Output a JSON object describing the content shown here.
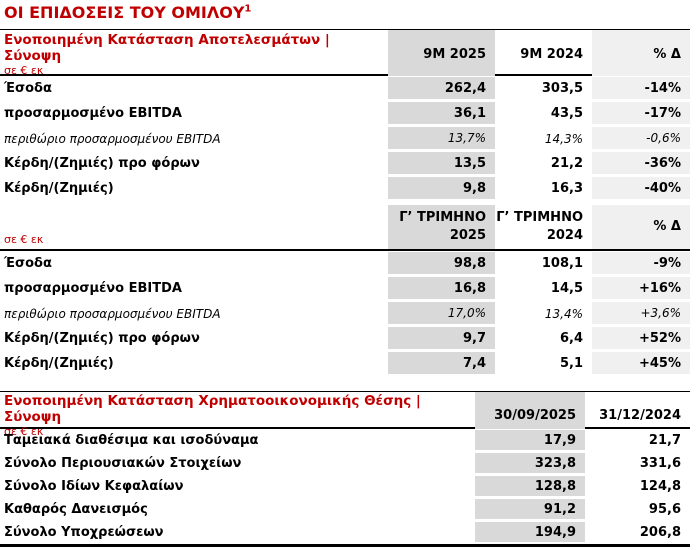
{
  "page": {
    "title": "ΟΙ ΕΠΙΔΟΣΕΙΣ ΤΟΥ ΟΜΙΛΟΥ",
    "title_superscript": "1"
  },
  "colors": {
    "accent_red": "#C00000",
    "column_grey": "#D9D9D9",
    "column_light_grey": "#F0F0F0"
  },
  "income_statement": {
    "title": "Ενοποιημένη Κατάσταση Αποτελεσμάτων | Σύνοψη",
    "unit": "σε € εκ",
    "columns": [
      "9M 2025",
      "9M 2024",
      "% Δ"
    ],
    "rows": [
      {
        "label": "Έσοδα",
        "values": [
          "262,4",
          "303,5",
          "-14%"
        ]
      },
      {
        "label": "προσαρμοσμένο EBITDA",
        "values": [
          "36,1",
          "43,5",
          "-17%"
        ]
      },
      {
        "label": "περιθώριο προσαρμοσμένου EBITDA",
        "values": [
          "13,7%",
          "14,3%",
          "-0,6%"
        ]
      },
      {
        "label": "Κέρδη/(Ζημιές) προ φόρων",
        "values": [
          "13,5",
          "21,2",
          "-36%"
        ]
      },
      {
        "label": "Κέρδη/(Ζημιές)",
        "values": [
          "9,8",
          "16,3",
          "-40%"
        ]
      }
    ]
  },
  "quarter": {
    "unit": "σε € εκ",
    "columns": [
      "Γ’ ΤΡΙΜΗΝΟ\n2025",
      "Γ’ ΤΡΙΜΗΝΟ\n2024",
      "% Δ"
    ],
    "rows": [
      {
        "label": "Έσοδα",
        "values": [
          "98,8",
          "108,1",
          "-9%"
        ]
      },
      {
        "label": "προσαρμοσμένο EBITDA",
        "values": [
          "16,8",
          "14,5",
          "+16%"
        ]
      },
      {
        "label": "περιθώριο προσαρμοσμένου EBITDA",
        "values": [
          "17,0%",
          "13,4%",
          "+3,6%"
        ]
      },
      {
        "label": "Κέρδη/(Ζημιές) προ φόρων",
        "values": [
          "9,7",
          "6,4",
          "+52%"
        ]
      },
      {
        "label": "Κέρδη/(Ζημιές)",
        "values": [
          "7,4",
          "5,1",
          "+45%"
        ]
      }
    ]
  },
  "financial_position": {
    "title": "Ενοποιημένη Κατάσταση Χρηματοοικονομικής Θέσης | Σύνοψη",
    "unit": "σε € εκ",
    "columns": [
      "30/09/2025",
      "31/12/2024"
    ],
    "rows": [
      {
        "label": "Ταμειακά διαθέσιμα και ισοδύναμα",
        "values": [
          "17,9",
          "21,7"
        ]
      },
      {
        "label": "Σύνολο Περιουσιακών Στοιχείων",
        "values": [
          "323,8",
          "331,6"
        ]
      },
      {
        "label": "Σύνολο Ιδίων Κεφαλαίων",
        "values": [
          "128,8",
          "124,8"
        ]
      },
      {
        "label": "Καθαρός Δανεισμός",
        "values": [
          "91,2",
          "95,6"
        ]
      },
      {
        "label": "Σύνολο Υποχρεώσεων",
        "values": [
          "194,9",
          "206,8"
        ]
      }
    ]
  }
}
